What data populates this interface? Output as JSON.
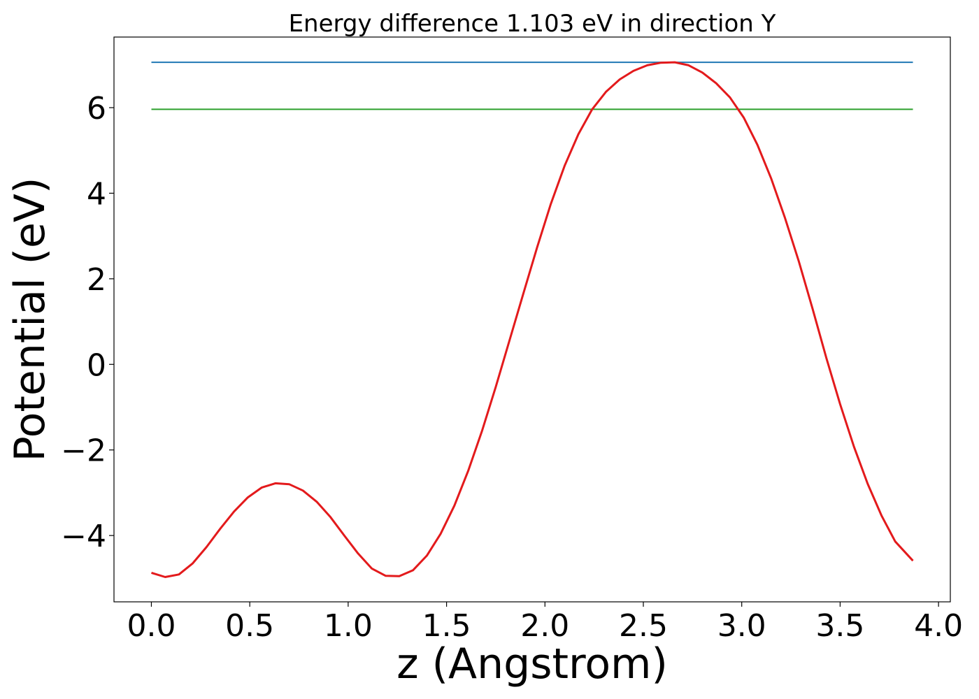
{
  "chart_data": {
    "type": "line",
    "title": "Energy difference 1.103 eV in direction Y",
    "xlabel": "z (Angstrom)",
    "ylabel": "Potential (eV)",
    "xlim": [
      -0.19,
      4.06
    ],
    "ylim": [
      -5.55,
      7.65
    ],
    "xticks": [
      0.0,
      0.5,
      1.0,
      1.5,
      2.0,
      2.5,
      3.0,
      3.5,
      4.0
    ],
    "xtick_labels": [
      "0.0",
      "0.5",
      "1.0",
      "1.5",
      "2.0",
      "2.5",
      "3.0",
      "3.5",
      "4.0"
    ],
    "yticks": [
      -4,
      -2,
      0,
      2,
      4,
      6
    ],
    "ytick_labels": [
      "−4",
      "−2",
      "0",
      "2",
      "4",
      "6"
    ],
    "grid": false,
    "legend": "none",
    "series": [
      {
        "color": "#1f77b4",
        "x": [
          0.0,
          3.87
        ],
        "y": [
          7.06,
          7.06
        ]
      },
      {
        "color": "#2ca02c",
        "x": [
          0.0,
          3.87
        ],
        "y": [
          5.96,
          5.96
        ]
      },
      {
        "color": "#e31a1c",
        "x": [
          0.0,
          0.07,
          0.14,
          0.21,
          0.28,
          0.35,
          0.42,
          0.49,
          0.56,
          0.63,
          0.7,
          0.77,
          0.84,
          0.91,
          0.98,
          1.05,
          1.12,
          1.19,
          1.26,
          1.33,
          1.4,
          1.47,
          1.54,
          1.61,
          1.68,
          1.75,
          1.82,
          1.89,
          1.96,
          2.03,
          2.1,
          2.17,
          2.24,
          2.31,
          2.38,
          2.45,
          2.52,
          2.59,
          2.66,
          2.73,
          2.8,
          2.87,
          2.94,
          3.01,
          3.08,
          3.15,
          3.22,
          3.29,
          3.36,
          3.43,
          3.5,
          3.57,
          3.64,
          3.71,
          3.78,
          3.87
        ],
        "y": [
          -4.87,
          -4.97,
          -4.91,
          -4.65,
          -4.27,
          -3.84,
          -3.44,
          -3.11,
          -2.88,
          -2.78,
          -2.8,
          -2.95,
          -3.21,
          -3.57,
          -4.0,
          -4.42,
          -4.77,
          -4.94,
          -4.95,
          -4.81,
          -4.47,
          -3.96,
          -3.3,
          -2.49,
          -1.56,
          -0.53,
          0.56,
          1.65,
          2.73,
          3.75,
          4.64,
          5.38,
          5.96,
          6.37,
          6.66,
          6.86,
          6.99,
          7.05,
          7.06,
          6.99,
          6.82,
          6.57,
          6.24,
          5.77,
          5.13,
          4.34,
          3.42,
          2.41,
          1.3,
          0.15,
          -0.93,
          -1.92,
          -2.79,
          -3.53,
          -4.14,
          -4.59
        ]
      }
    ]
  }
}
